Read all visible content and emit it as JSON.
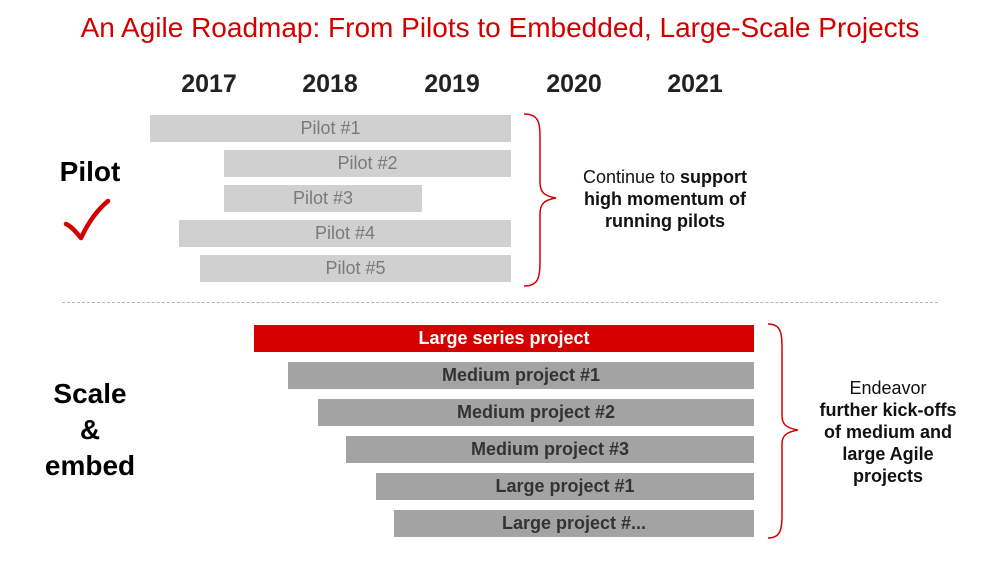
{
  "title": "An Agile Roadmap: From Pilots to Embedded, Large-Scale Projects",
  "years": [
    "2017",
    "2018",
    "2019",
    "2020",
    "2021"
  ],
  "pilot_section": {
    "label": "Pilot",
    "check_icon": "check-icon",
    "bars": [
      "Pilot #1",
      "Pilot #2",
      "Pilot #3",
      "Pilot #4",
      "Pilot #5"
    ],
    "note": {
      "line1_regular": "Continue to ",
      "line1_bold": "support",
      "line2": "high momentum of",
      "line3": "running pilots"
    }
  },
  "scale_section": {
    "label_line1": "Scale",
    "label_line2": "&",
    "label_line3": "embed",
    "bars": [
      "Large series project",
      "Medium project #1",
      "Medium project #2",
      "Medium project #3",
      "Large project #1",
      "Large project #..."
    ],
    "note": {
      "line1": "Endeavor",
      "line2": "further kick-offs",
      "line3": "of medium and",
      "line4": "large Agile",
      "line5": "projects"
    }
  },
  "colors": {
    "accent": "#d40000",
    "pilot_bar": "#d0d0d0",
    "project_bar": "#a3a3a3"
  }
}
